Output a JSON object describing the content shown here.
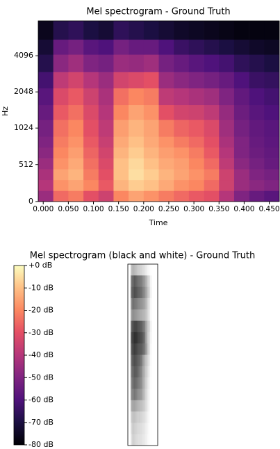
{
  "chart_data": [
    {
      "type": "heatmap",
      "title": "Mel spectrogram - Ground Truth",
      "xlabel": "Time",
      "ylabel": "Hz",
      "colormap": "magma",
      "clim": [
        -80,
        0
      ],
      "xlim": [
        -0.01,
        0.47
      ],
      "xticks": [
        {
          "value": 0,
          "label": "0.000"
        },
        {
          "value": 0.05,
          "label": "0.050"
        },
        {
          "value": 0.1,
          "label": "0.100"
        },
        {
          "value": 0.15,
          "label": "0.150"
        },
        {
          "value": 0.2,
          "label": "0.200"
        },
        {
          "value": 0.25,
          "label": "0.250"
        },
        {
          "value": 0.3,
          "label": "0.300"
        },
        {
          "value": 0.35,
          "label": "0.350"
        },
        {
          "value": 0.4,
          "label": "0.400"
        },
        {
          "value": 0.45,
          "label": "0.450"
        }
      ],
      "ylim": [
        0,
        8000
      ],
      "yscale": "symlog",
      "linthresh": 1000,
      "linscale": 1,
      "base": 2,
      "yticks": [
        0,
        512,
        1024,
        2048,
        4096
      ],
      "x_edges": [
        -0.01,
        0.02,
        0.05,
        0.08,
        0.11,
        0.14,
        0.17,
        0.2,
        0.23,
        0.26,
        0.29,
        0.32,
        0.35,
        0.38,
        0.41,
        0.44,
        0.47
      ],
      "y_edges": [
        0,
        150,
        300,
        450,
        600,
        750,
        900,
        1200,
        1600,
        2200,
        3000,
        4200,
        5600,
        8000
      ],
      "z": [
        [
          -45,
          -25,
          -22,
          -30,
          -35,
          -20,
          -15,
          -18,
          -22,
          -25,
          -28,
          -30,
          -40,
          -50,
          -55,
          -58
        ],
        [
          -40,
          -18,
          -15,
          -20,
          -28,
          -12,
          -8,
          -10,
          -14,
          -18,
          -20,
          -25,
          -35,
          -45,
          -48,
          -50
        ],
        [
          -42,
          -15,
          -12,
          -22,
          -30,
          -10,
          -5,
          -8,
          -12,
          -15,
          -18,
          -22,
          -35,
          -45,
          -50,
          -52
        ],
        [
          -45,
          -18,
          -14,
          -24,
          -32,
          -10,
          -6,
          -10,
          -14,
          -16,
          -20,
          -25,
          -38,
          -48,
          -52,
          -55
        ],
        [
          -48,
          -20,
          -16,
          -26,
          -34,
          -12,
          -8,
          -12,
          -16,
          -18,
          -22,
          -28,
          -40,
          -50,
          -54,
          -56
        ],
        [
          -50,
          -22,
          -18,
          -28,
          -36,
          -14,
          -10,
          -14,
          -18,
          -22,
          -25,
          -30,
          -42,
          -50,
          -55,
          -57
        ],
        [
          -52,
          -24,
          -20,
          -30,
          -38,
          -16,
          -12,
          -15,
          -22,
          -26,
          -28,
          -32,
          -44,
          -52,
          -56,
          -58
        ],
        [
          -55,
          -28,
          -24,
          -32,
          -40,
          -20,
          -15,
          -18,
          -30,
          -34,
          -35,
          -38,
          -46,
          -54,
          -58,
          -60
        ],
        [
          -58,
          -32,
          -28,
          -35,
          -42,
          -24,
          -20,
          -22,
          -38,
          -40,
          -42,
          -44,
          -50,
          -56,
          -60,
          -62
        ],
        [
          -62,
          -38,
          -34,
          -40,
          -45,
          -34,
          -32,
          -30,
          -45,
          -48,
          -50,
          -52,
          -55,
          -60,
          -64,
          -65
        ],
        [
          -68,
          -48,
          -44,
          -50,
          -52,
          -45,
          -46,
          -44,
          -52,
          -55,
          -58,
          -60,
          -62,
          -66,
          -68,
          -70
        ],
        [
          -72,
          -55,
          -52,
          -58,
          -60,
          -52,
          -55,
          -55,
          -60,
          -64,
          -66,
          -68,
          -70,
          -72,
          -74,
          -75
        ],
        [
          -76,
          -68,
          -66,
          -70,
          -72,
          -66,
          -68,
          -70,
          -72,
          -74,
          -75,
          -76,
          -77,
          -78,
          -78,
          -78
        ]
      ]
    },
    {
      "type": "colorbar",
      "title": "Mel spectrogram (black and white) - Ground Truth",
      "colormap": "magma",
      "clim": [
        -80,
        0
      ],
      "ticks": [
        {
          "value": 0,
          "label": "+0 dB"
        },
        {
          "value": -10,
          "label": "-10 dB"
        },
        {
          "value": -20,
          "label": "-20 dB"
        },
        {
          "value": -30,
          "label": "-30 dB"
        },
        {
          "value": -40,
          "label": "-40 dB"
        },
        {
          "value": -50,
          "label": "-50 dB"
        },
        {
          "value": -60,
          "label": "-60 dB"
        },
        {
          "value": -70,
          "label": "-70 dB"
        },
        {
          "value": -80,
          "label": "-80 dB"
        }
      ]
    }
  ]
}
